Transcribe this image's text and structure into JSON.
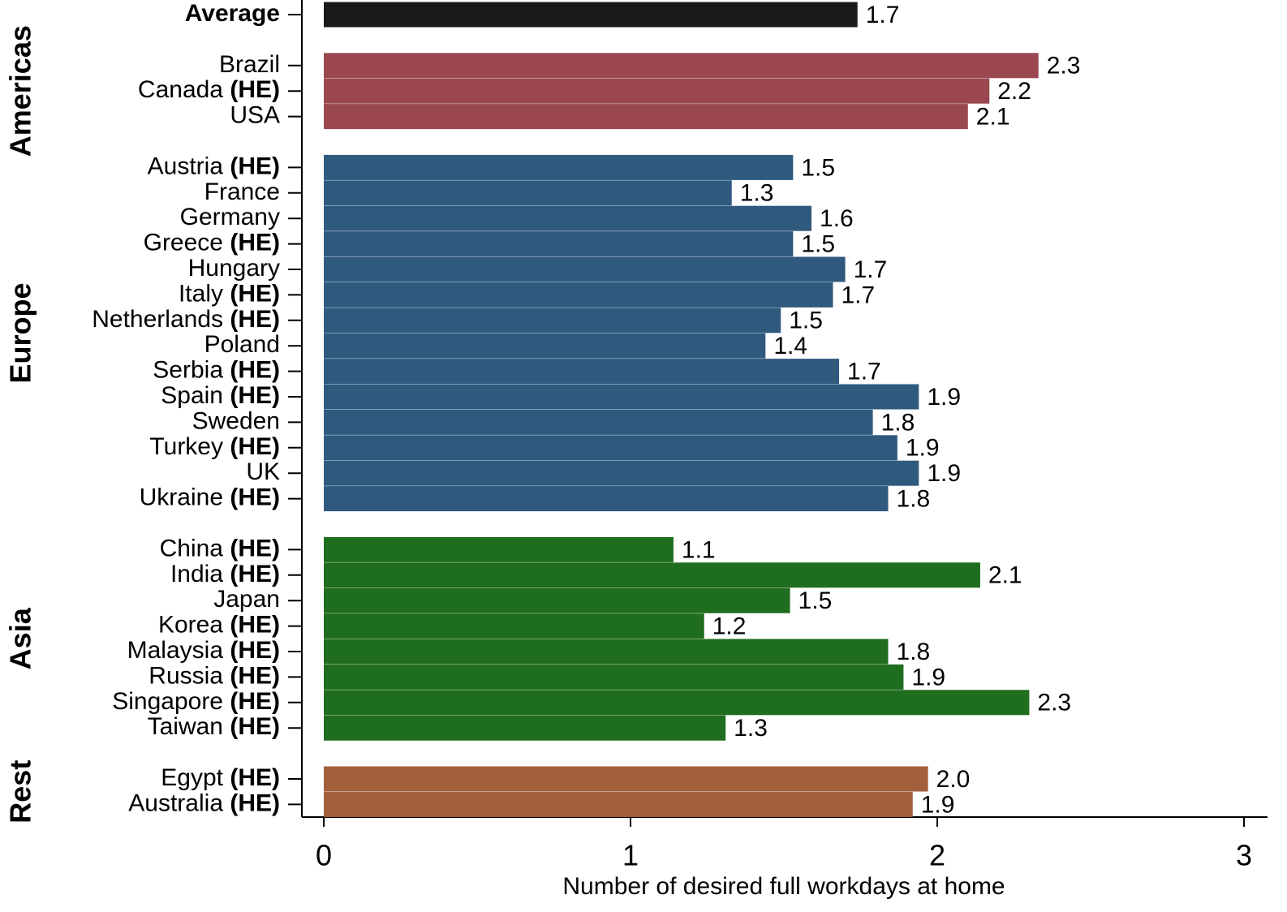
{
  "chart_data": {
    "type": "bar",
    "orientation": "horizontal",
    "xlabel": "Number of desired full workdays at home",
    "xlim": [
      0,
      3
    ],
    "xticks": [
      0,
      1,
      2,
      3
    ],
    "average": {
      "label": "Average",
      "value": 1.74,
      "value_label": "1.7",
      "color": "#1a1a1a"
    },
    "groups": [
      {
        "name": "Americas",
        "color": "#9a4750",
        "categories": [
          "Brazil",
          "Canada",
          "USA"
        ],
        "tags": [
          null,
          "(HE)",
          null
        ],
        "values": [
          2.33,
          2.17,
          2.1
        ],
        "value_labels": [
          "2.3",
          "2.2",
          "2.1"
        ]
      },
      {
        "name": "Europe",
        "color": "#30597e",
        "categories": [
          "Austria",
          "France",
          "Germany",
          "Greece",
          "Hungary",
          "Italy",
          "Netherlands",
          "Poland",
          "Serbia",
          "Spain",
          "Sweden",
          "Turkey",
          "UK",
          "Ukraine"
        ],
        "tags": [
          "(HE)",
          null,
          null,
          "(HE)",
          null,
          "(HE)",
          "(HE)",
          null,
          "(HE)",
          "(HE)",
          null,
          "(HE)",
          null,
          "(HE)"
        ],
        "values": [
          1.53,
          1.33,
          1.59,
          1.53,
          1.7,
          1.66,
          1.49,
          1.44,
          1.68,
          1.94,
          1.79,
          1.87,
          1.94,
          1.84
        ],
        "value_labels": [
          "1.5",
          "1.3",
          "1.6",
          "1.5",
          "1.7",
          "1.7",
          "1.5",
          "1.4",
          "1.7",
          "1.9",
          "1.8",
          "1.9",
          "1.9",
          "1.8"
        ]
      },
      {
        "name": "Asia",
        "color": "#1f6d1e",
        "categories": [
          "China",
          "India",
          "Japan",
          "Korea",
          "Malaysia",
          "Russia",
          "Singapore",
          "Taiwan"
        ],
        "tags": [
          "(HE)",
          "(HE)",
          null,
          "(HE)",
          "(HE)",
          "(HE)",
          "(HE)",
          "(HE)"
        ],
        "values": [
          1.14,
          2.14,
          1.52,
          1.24,
          1.84,
          1.89,
          2.3,
          1.31
        ],
        "value_labels": [
          "1.1",
          "2.1",
          "1.5",
          "1.2",
          "1.8",
          "1.9",
          "2.3",
          "1.3"
        ]
      },
      {
        "name": "Rest",
        "color": "#a35f3c",
        "categories": [
          "Egypt",
          "Australia"
        ],
        "tags": [
          "(HE)",
          "(HE)"
        ],
        "values": [
          1.97,
          1.92
        ],
        "value_labels": [
          "2.0",
          "1.9"
        ]
      }
    ]
  }
}
